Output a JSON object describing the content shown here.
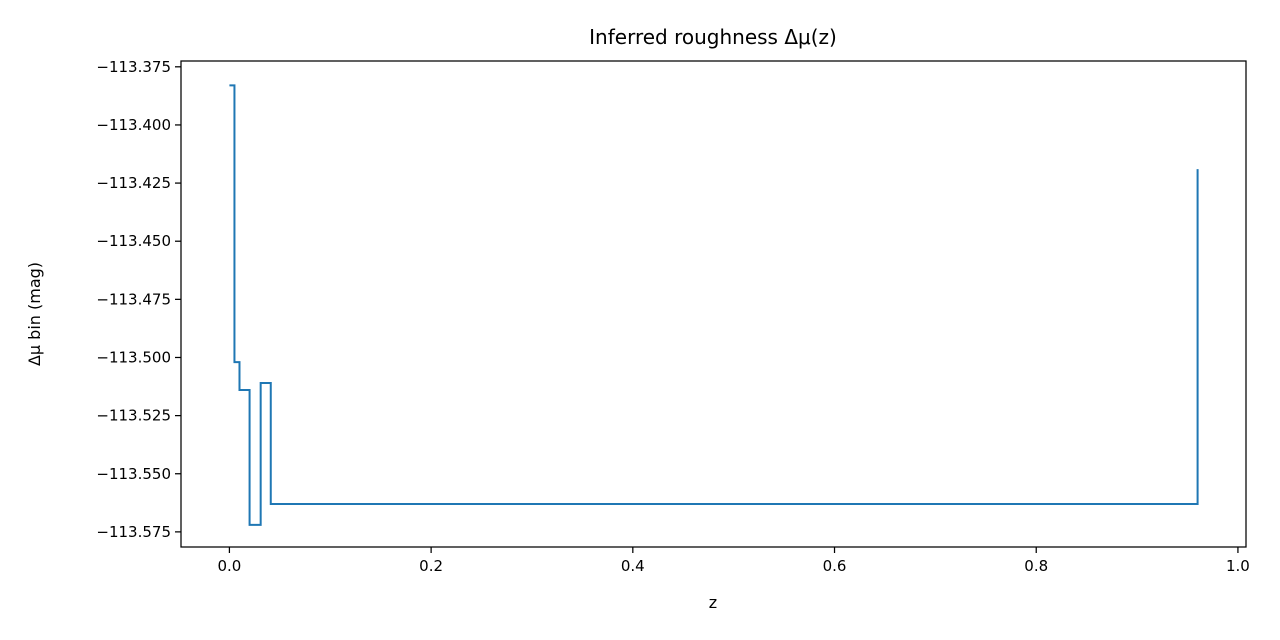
{
  "chart_data": {
    "type": "line",
    "title": "Inferred roughness Δμ(z)",
    "xlabel": "z",
    "ylabel": "Δμ bin (mag)",
    "xlim": [
      -0.048,
      1.008
    ],
    "ylim": [
      -113.5815,
      -113.3725
    ],
    "x_ticks": [
      0.0,
      0.2,
      0.4,
      0.6,
      0.8,
      1.0
    ],
    "x_tick_labels": [
      "0.0",
      "0.2",
      "0.4",
      "0.6",
      "0.8",
      "1.0"
    ],
    "y_ticks": [
      -113.375,
      -113.4,
      -113.425,
      -113.45,
      -113.475,
      -113.5,
      -113.525,
      -113.55,
      -113.575
    ],
    "y_tick_labels": [
      "−113.375",
      "−113.400",
      "−113.425",
      "−113.450",
      "−113.475",
      "−113.500",
      "−113.525",
      "−113.550",
      "−113.575"
    ],
    "grid": false,
    "step": "pre",
    "color": "#1f77b4",
    "series": [
      {
        "x": [
          0.0,
          0.005,
          0.005,
          0.01,
          0.01,
          0.02,
          0.02,
          0.031,
          0.031,
          0.041,
          0.041,
          0.96,
          0.96
        ],
        "y": [
          -113.383,
          -113.383,
          -113.502,
          -113.502,
          -113.514,
          -113.514,
          -113.572,
          -113.572,
          -113.511,
          -113.511,
          -113.563,
          -113.563,
          -113.419
        ]
      }
    ]
  }
}
